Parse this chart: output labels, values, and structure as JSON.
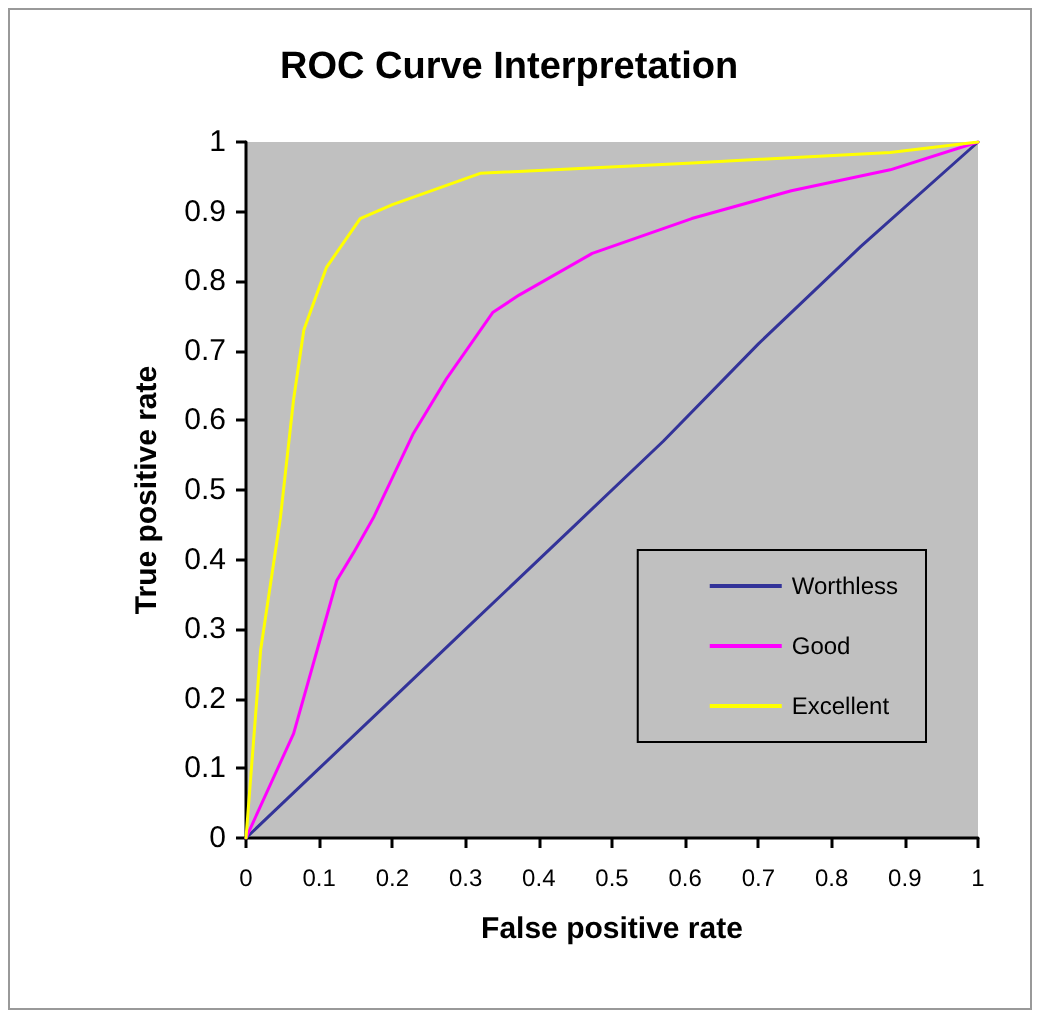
{
  "chart_data": {
    "type": "line",
    "title": "ROC Curve Interpretation",
    "xlabel": "False positive rate",
    "ylabel": "True positive rate",
    "xlim": [
      0,
      1
    ],
    "ylim": [
      0,
      1
    ],
    "xticks": [
      0,
      0.1,
      0.2,
      0.3,
      0.4,
      0.5,
      0.6,
      0.7,
      0.8,
      0.9,
      1
    ],
    "yticks": [
      0,
      0.1,
      0.2,
      0.3,
      0.4,
      0.5,
      0.6,
      0.7,
      0.8,
      0.9,
      1
    ],
    "grid": false,
    "legend": "bottom right",
    "marker": "none",
    "line_style": "solid",
    "series": [
      {
        "name": "Worthless",
        "color": "#333399",
        "x": [
          0,
          0.1,
          0.2,
          0.3,
          0.4,
          0.45,
          0.57,
          0.7,
          0.84,
          1
        ],
        "values": [
          0,
          0.1,
          0.2,
          0.3,
          0.4,
          0.45,
          0.57,
          0.71,
          0.85,
          1
        ]
      },
      {
        "name": "Good",
        "color": "#ff00ff",
        "x": [
          0,
          0.065,
          0.124,
          0.147,
          0.174,
          0.228,
          0.274,
          0.337,
          0.373,
          0.473,
          0.609,
          0.745,
          0.88,
          1
        ],
        "values": [
          0,
          0.15,
          0.37,
          0.41,
          0.46,
          0.58,
          0.66,
          0.755,
          0.78,
          0.84,
          0.89,
          0.93,
          0.96,
          1
        ]
      },
      {
        "name": "Excellent",
        "color": "#ffff00",
        "x": [
          0,
          0.02,
          0.047,
          0.065,
          0.079,
          0.11,
          0.156,
          0.2,
          0.32,
          0.61,
          0.88,
          1
        ],
        "values": [
          0,
          0.27,
          0.46,
          0.63,
          0.73,
          0.82,
          0.89,
          0.91,
          0.955,
          0.97,
          0.985,
          1
        ]
      }
    ]
  }
}
